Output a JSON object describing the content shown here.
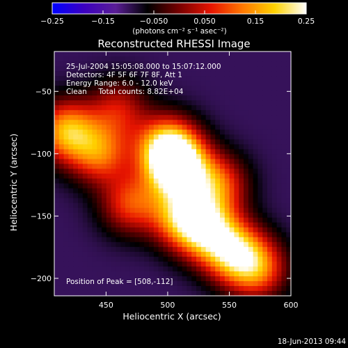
{
  "chart_data": {
    "type": "heatmap",
    "title": "Reconstructed RHESSI Image",
    "xlabel": "Heliocentric X (arcsec)",
    "ylabel": "Heliocentric Y (arcsec)",
    "xlim": [
      408,
      600
    ],
    "ylim": [
      -214,
      -18
    ],
    "xticks": [
      "450",
      "500",
      "550",
      "600"
    ],
    "yticks": [
      "−50",
      "−100",
      "−150",
      "−200"
    ],
    "xtick_values": [
      450,
      500,
      550,
      600
    ],
    "ytick_values": [
      -50,
      -100,
      -150,
      -200
    ],
    "colorbar": {
      "label": "(photons cm⁻² s⁻¹ asec⁻²)",
      "range": [
        -0.25,
        0.25
      ],
      "ticks": [
        "−0.25",
        "−0.15",
        "−0.050",
        "0.050",
        "0.15",
        "0.25"
      ],
      "tick_values": [
        -0.25,
        -0.15,
        -0.05,
        0.05,
        0.15,
        0.25
      ],
      "colors": [
        "#0000ff",
        "#3c00c0",
        "#5a1e96",
        "#000000",
        "#780000",
        "#e61400",
        "#ff7800",
        "#ffd200",
        "#ffffff"
      ]
    },
    "annotations": {
      "time_range": "25-Jul-2004 15:05:08.000 to 15:07:12.000",
      "detectors": "Detectors: 4F 5F 6F 7F 8F, Att 1",
      "energy": "Energy Range: 6.0 - 12.0 keV",
      "clean": "Clean     Total counts: 8.82E+04",
      "peak": "Position of Peak = [508,-112]"
    },
    "sources": [
      {
        "x": 500,
        "y": -95,
        "amplitude": 0.3
      },
      {
        "x": 508,
        "y": -112,
        "amplitude": 0.34
      },
      {
        "x": 530,
        "y": -160,
        "amplitude": 0.27
      },
      {
        "x": 552,
        "y": -178,
        "amplitude": 0.26
      },
      {
        "x": 572,
        "y": -192,
        "amplitude": 0.22
      },
      {
        "x": 418,
        "y": -82,
        "amplitude": 0.26
      },
      {
        "x": 445,
        "y": -100,
        "amplitude": 0.2
      },
      {
        "x": 470,
        "y": -140,
        "amplitude": 0.18
      },
      {
        "x": 510,
        "y": -150,
        "amplitude": 0.22
      },
      {
        "x": 460,
        "y": -65,
        "amplitude": 0.14
      },
      {
        "x": 540,
        "y": -125,
        "amplitude": 0.2
      }
    ]
  },
  "footer": {
    "timestamp": "18-Jun-2013 09:44"
  }
}
